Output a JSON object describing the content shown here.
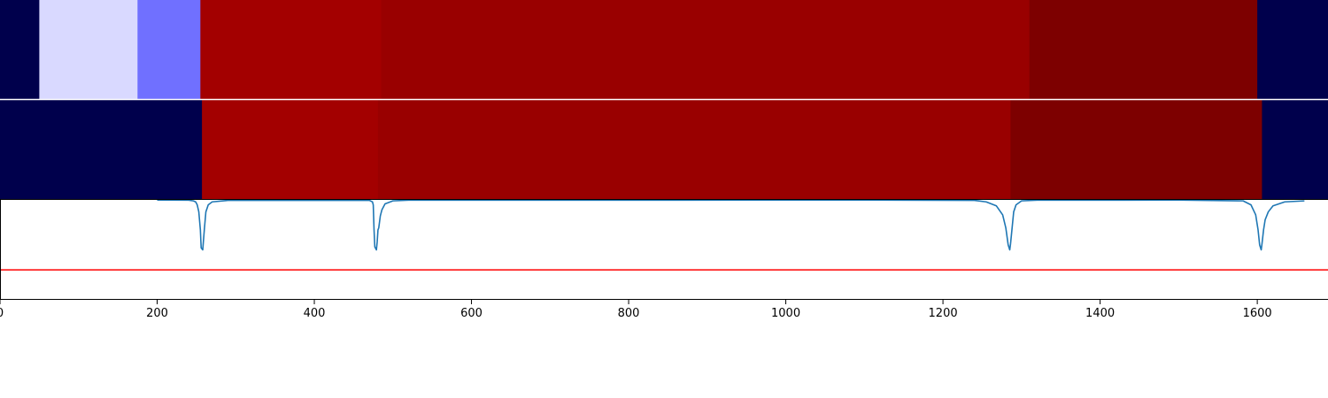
{
  "chart_data": [
    {
      "type": "heatmap",
      "panel": "segmentation-top",
      "xlim": [
        0,
        1690
      ],
      "segments": [
        {
          "start": 0,
          "end": 50,
          "color": "#00004c"
        },
        {
          "start": 50,
          "end": 175,
          "color": "#d9d9ff"
        },
        {
          "start": 175,
          "end": 255,
          "color": "#7070ff"
        },
        {
          "start": 255,
          "end": 485,
          "color": "#a30000"
        },
        {
          "start": 485,
          "end": 1310,
          "color": "#990000"
        },
        {
          "start": 1310,
          "end": 1600,
          "color": "#7d0000"
        },
        {
          "start": 1600,
          "end": 1690,
          "color": "#00004c"
        }
      ]
    },
    {
      "type": "heatmap",
      "panel": "segmentation-bottom",
      "xlim": [
        0,
        1690
      ],
      "segments": [
        {
          "start": 0,
          "end": 257,
          "color": "#00004c"
        },
        {
          "start": 257,
          "end": 481,
          "color": "#a30000"
        },
        {
          "start": 481,
          "end": 1286,
          "color": "#990000"
        },
        {
          "start": 1286,
          "end": 1606,
          "color": "#7d0000"
        },
        {
          "start": 1606,
          "end": 1690,
          "color": "#00004c"
        }
      ]
    },
    {
      "type": "line",
      "panel": "boundary-signal",
      "xlim": [
        0,
        1690
      ],
      "ylim": [
        -1.0,
        0.0
      ],
      "xticks": [
        0,
        200,
        400,
        600,
        800,
        1000,
        1200,
        1400,
        1600
      ],
      "xtick_labels": [
        "0",
        "200",
        "400",
        "600",
        "800",
        "1000",
        "1200",
        "1400",
        "1600"
      ],
      "series": [
        {
          "color": "#1f77b4",
          "x": [
            200,
            240,
            246,
            249,
            251,
            253,
            255,
            256,
            258,
            260,
            262,
            265,
            270,
            290,
            470,
            474,
            475,
            476,
            477,
            479,
            480,
            481,
            482,
            484,
            486,
            490,
            500,
            520,
            1100,
            1240,
            1255,
            1268,
            1276,
            1280,
            1283,
            1285,
            1286,
            1288,
            1290,
            1293,
            1300,
            1320,
            1500,
            1582,
            1592,
            1598,
            1601,
            1603,
            1605,
            1606,
            1608,
            1610,
            1614,
            1620,
            1635,
            1660
          ],
          "y": [
            -0.002,
            -0.003,
            -0.01,
            -0.02,
            -0.05,
            -0.12,
            -0.3,
            -0.48,
            -0.5,
            -0.3,
            -0.12,
            -0.05,
            -0.02,
            -0.005,
            -0.005,
            -0.02,
            -0.05,
            -0.3,
            -0.47,
            -0.5,
            -0.42,
            -0.3,
            -0.28,
            -0.16,
            -0.1,
            -0.04,
            -0.01,
            -0.003,
            -0.002,
            -0.005,
            -0.02,
            -0.06,
            -0.15,
            -0.28,
            -0.45,
            -0.5,
            -0.44,
            -0.28,
            -0.12,
            -0.05,
            -0.01,
            -0.003,
            -0.002,
            -0.01,
            -0.05,
            -0.15,
            -0.3,
            -0.45,
            -0.5,
            -0.44,
            -0.3,
            -0.2,
            -0.12,
            -0.06,
            -0.02,
            -0.01
          ]
        }
      ],
      "threshold": {
        "y": -0.7,
        "color": "#ff0000"
      }
    }
  ]
}
